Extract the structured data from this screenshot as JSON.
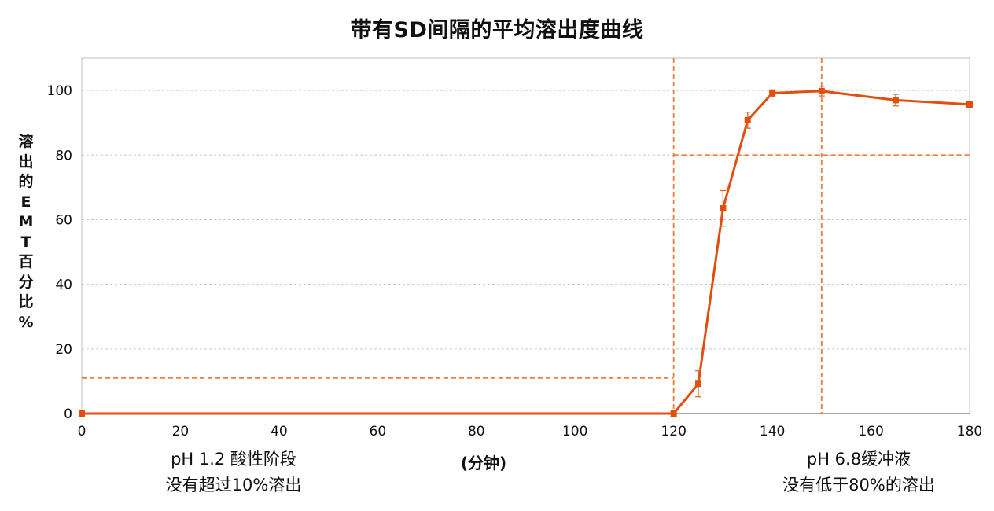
{
  "chart_data": {
    "type": "line",
    "title": "带有SD间隔的平均溶出度曲线",
    "ylabel": "溶出的EMT百分比%",
    "xlabel": "(分钟)",
    "xlim": [
      0,
      180
    ],
    "ylim": [
      0,
      110
    ],
    "xticks": [
      0,
      20,
      40,
      60,
      80,
      100,
      120,
      140,
      160,
      180
    ],
    "yticks": [
      0,
      20,
      40,
      60,
      80,
      100
    ],
    "grid": "horizontal dashed",
    "series": [
      {
        "color": "#e04e10",
        "x": [
          0,
          120,
          125,
          130,
          135,
          140,
          150,
          165,
          180
        ],
        "y": [
          0,
          0,
          9.2,
          63.5,
          90.8,
          99.2,
          99.8,
          97.0,
          95.7
        ],
        "err": [
          0,
          0,
          4.0,
          5.5,
          2.5,
          1.0,
          1.5,
          1.8,
          1.0
        ]
      }
    ],
    "reference_lines": [
      {
        "type": "horizontal",
        "y": 11,
        "x_range": [
          0,
          120
        ]
      },
      {
        "type": "vertical",
        "x": 120
      },
      {
        "type": "horizontal",
        "y": 80,
        "x_range": [
          120,
          180
        ]
      },
      {
        "type": "vertical",
        "x": 150
      }
    ],
    "reference_color": "#ee7d3c",
    "annotations": [
      {
        "id": "left",
        "lines": [
          "pH 1.2 酸性阶段",
          "没有超过10%溶出"
        ]
      },
      {
        "id": "right",
        "lines": [
          "pH 6.8缓冲液",
          "没有低于80%的溶出"
        ]
      }
    ]
  }
}
